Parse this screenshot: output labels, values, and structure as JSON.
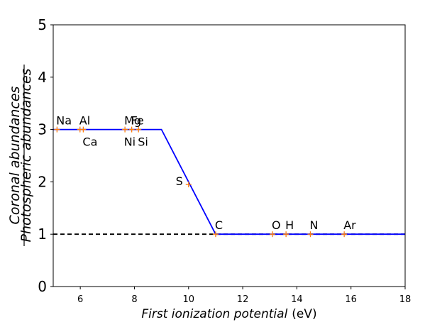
{
  "chart_data": {
    "type": "line",
    "xlabel_italic": "First ionization potential",
    "xlabel_unit": "(eV)",
    "ylabel_numerator": "Coronal  abundances",
    "ylabel_denominator": "Photospheric abundances",
    "xlim": [
      5,
      18
    ],
    "ylim": [
      0,
      5
    ],
    "xticks": [
      6,
      8,
      10,
      12,
      14,
      16,
      18
    ],
    "yticks": [
      0,
      1,
      2,
      3,
      4,
      5
    ],
    "grid": false,
    "series": [
      {
        "style": "solid",
        "color": "#0000ff",
        "x": [
          5,
          9,
          11,
          18
        ],
        "y": [
          3,
          3,
          1,
          1
        ]
      },
      {
        "style": "dashed",
        "color": "#000000",
        "x": [
          5,
          18
        ],
        "y": [
          1,
          1
        ]
      }
    ],
    "points": [
      {
        "label": "Na",
        "x": 5.14,
        "y": 3,
        "label_pos": "above"
      },
      {
        "label": "Al",
        "x": 5.99,
        "y": 3,
        "label_pos": "above"
      },
      {
        "label": "Ca",
        "x": 6.11,
        "y": 3,
        "label_pos": "below"
      },
      {
        "label": "Mg",
        "x": 7.65,
        "y": 3,
        "label_pos": "above"
      },
      {
        "label": "Ni",
        "x": 7.64,
        "y": 3,
        "label_pos": "below"
      },
      {
        "label": "Fe",
        "x": 7.9,
        "y": 3,
        "label_pos": "above"
      },
      {
        "label": "Si",
        "x": 8.15,
        "y": 3,
        "label_pos": "below"
      },
      {
        "label": "S",
        "x": 10.0,
        "y": 1.95,
        "label_pos": "left"
      },
      {
        "label": "C",
        "x": 11.0,
        "y": 1,
        "label_pos": "above"
      },
      {
        "label": "O",
        "x": 13.1,
        "y": 1,
        "label_pos": "above"
      },
      {
        "label": "H",
        "x": 13.6,
        "y": 1,
        "label_pos": "above"
      },
      {
        "label": "N",
        "x": 14.5,
        "y": 1,
        "label_pos": "above"
      },
      {
        "label": "Ar",
        "x": 15.75,
        "y": 1,
        "label_pos": "above"
      }
    ],
    "marker_color": "#ff7f0e"
  }
}
